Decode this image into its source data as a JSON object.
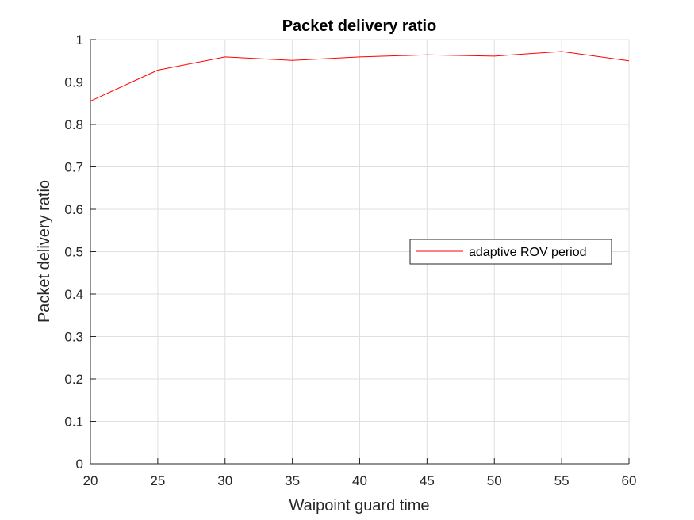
{
  "chart_data": {
    "type": "line",
    "title": "Packet delivery ratio",
    "xlabel": "Waipoint guard time",
    "ylabel": "Packet delivery ratio",
    "xlim": [
      20,
      60
    ],
    "ylim": [
      0,
      1
    ],
    "xticks": [
      20,
      25,
      30,
      35,
      40,
      45,
      50,
      55,
      60
    ],
    "yticks": [
      0,
      0.1,
      0.2,
      0.3,
      0.4,
      0.5,
      0.6,
      0.7,
      0.8,
      0.9,
      1
    ],
    "ytick_labels": [
      "0",
      "0.1",
      "0.2",
      "0.3",
      "0.4",
      "0.5",
      "0.6",
      "0.7",
      "0.8",
      "0.9",
      "1"
    ],
    "x": [
      20,
      25,
      30,
      35,
      40,
      45,
      50,
      55,
      60
    ],
    "series": [
      {
        "name": "adaptive ROV period",
        "color": "#ff0000",
        "values": [
          0.855,
          0.928,
          0.959,
          0.951,
          0.959,
          0.964,
          0.961,
          0.972,
          0.95
        ]
      }
    ],
    "grid": true,
    "legend_position": "center-right"
  }
}
